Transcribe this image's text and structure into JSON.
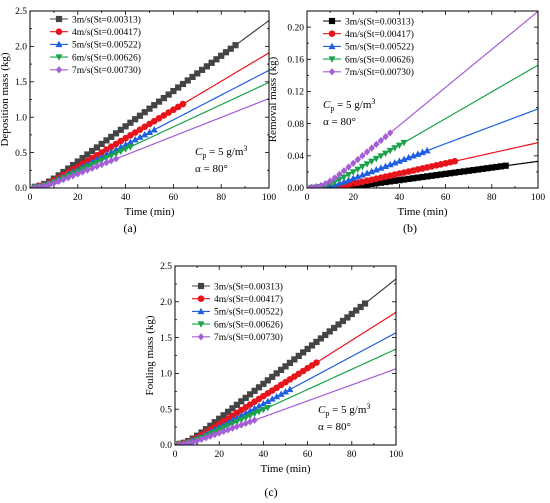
{
  "chart_data": [
    {
      "type": "line",
      "panel_label": "(a)",
      "ylabel": "Deposition mass (kg)",
      "xlabel": "Time (min)",
      "xlim": [
        0,
        100
      ],
      "ylim": [
        0,
        2.5
      ],
      "xticks": [
        0,
        20,
        40,
        60,
        80,
        100
      ],
      "yticks": [
        0.0,
        0.5,
        1.0,
        1.5,
        2.0,
        2.5
      ],
      "ytick_decimals": 1,
      "grid": false,
      "legend_position": "top-left",
      "annotation": {
        "cp_label": "C",
        "cp_sub": "p",
        "cp_value": " = 5 g/m",
        "cp_sup": "3",
        "alpha_label": "α = 80°"
      },
      "series": [
        {
          "name": "3m/s(St=0.00313)",
          "color": "#444444",
          "marker": "square",
          "slope": 0.0249,
          "onset": 5,
          "marker_end": 87
        },
        {
          "name": "4m/s(St=0.00417)",
          "color": "#e8141b",
          "marker": "circle",
          "slope": 0.0201,
          "onset": 5,
          "marker_end": 65
        },
        {
          "name": "5m/s(St=0.00522)",
          "color": "#1f5fe0",
          "marker": "triangle-up",
          "slope": 0.0175,
          "onset": 5,
          "marker_end": 52
        },
        {
          "name": "6m/s(St=0.00626)",
          "color": "#1aa34a",
          "marker": "triangle-down",
          "slope": 0.0157,
          "onset": 5,
          "marker_end": 43
        },
        {
          "name": "7m/s(St=0.00730)",
          "color": "#a45ed6",
          "marker": "diamond",
          "slope": 0.0133,
          "onset": 5,
          "marker_end": 36
        }
      ]
    },
    {
      "type": "line",
      "panel_label": "(b)",
      "ylabel": "Removal mass (kg)",
      "xlabel": "Time (min)",
      "xlim": [
        0,
        100
      ],
      "ylim": [
        0,
        0.22
      ],
      "xticks": [
        0,
        20,
        40,
        60,
        80,
        100
      ],
      "yticks": [
        0.0,
        0.04,
        0.08,
        0.12,
        0.16,
        0.2
      ],
      "ytick_labels": [
        "0.00",
        "0.04",
        "0.08",
        "0.12",
        "0.16",
        "0.20"
      ],
      "ytick_decimals": 2,
      "grid": false,
      "legend_position": "top-left",
      "annotation": {
        "cp_label": "C",
        "cp_sub": "p",
        "cp_value": " = 5 g/m",
        "cp_sup": "3",
        "alpha_label": "α = 80°"
      },
      "series": [
        {
          "name": "3m/s(St=0.00313)",
          "color": "#000000",
          "marker": "square",
          "slope": 0.00039,
          "onset": 15,
          "marker_end": 87
        },
        {
          "name": "4m/s(St=0.00417)",
          "color": "#e8141b",
          "marker": "circle",
          "slope": 0.00064,
          "onset": 12,
          "marker_end": 65
        },
        {
          "name": "5m/s(St=0.00522)",
          "color": "#1f5fe0",
          "marker": "triangle-up",
          "slope": 0.00108,
          "onset": 9,
          "marker_end": 52
        },
        {
          "name": "6m/s(St=0.00626)",
          "color": "#1aa34a",
          "marker": "triangle-down",
          "slope": 0.00166,
          "onset": 8,
          "marker_end": 43
        },
        {
          "name": "7m/s(St=0.00730)",
          "color": "#a45ed6",
          "marker": "diamond",
          "slope": 0.00236,
          "onset": 7,
          "marker_end": 36
        }
      ]
    },
    {
      "type": "line",
      "panel_label": "(c)",
      "ylabel": "Fouling mass (kg)",
      "xlabel": "Time (min)",
      "xlim": [
        0,
        100
      ],
      "ylim": [
        0,
        2.5
      ],
      "xticks": [
        0,
        20,
        40,
        60,
        80,
        100
      ],
      "yticks": [
        0.0,
        0.5,
        1.0,
        1.5,
        2.0,
        2.5
      ],
      "ytick_decimals": 1,
      "grid": false,
      "legend_position": "top-left",
      "annotation": {
        "cp_label": "C",
        "cp_sub": "p",
        "cp_value": " = 5 g/m",
        "cp_sup": "3",
        "alpha_label": "α = 80°"
      },
      "series": [
        {
          "name": "3m/s(St=0.00313)",
          "color": "#444444",
          "marker": "square",
          "slope": 0.0244,
          "onset": 5,
          "marker_end": 87
        },
        {
          "name": "4m/s(St=0.00417)",
          "color": "#e8141b",
          "marker": "circle",
          "slope": 0.0195,
          "onset": 5,
          "marker_end": 65
        },
        {
          "name": "5m/s(St=0.00522)",
          "color": "#1f5fe0",
          "marker": "triangle-up",
          "slope": 0.0165,
          "onset": 5,
          "marker_end": 52
        },
        {
          "name": "6m/s(St=0.00626)",
          "color": "#1aa34a",
          "marker": "triangle-down",
          "slope": 0.0141,
          "onset": 5,
          "marker_end": 43
        },
        {
          "name": "7m/s(St=0.00730)",
          "color": "#a45ed6",
          "marker": "diamond",
          "slope": 0.0112,
          "onset": 5,
          "marker_end": 36
        }
      ]
    }
  ]
}
